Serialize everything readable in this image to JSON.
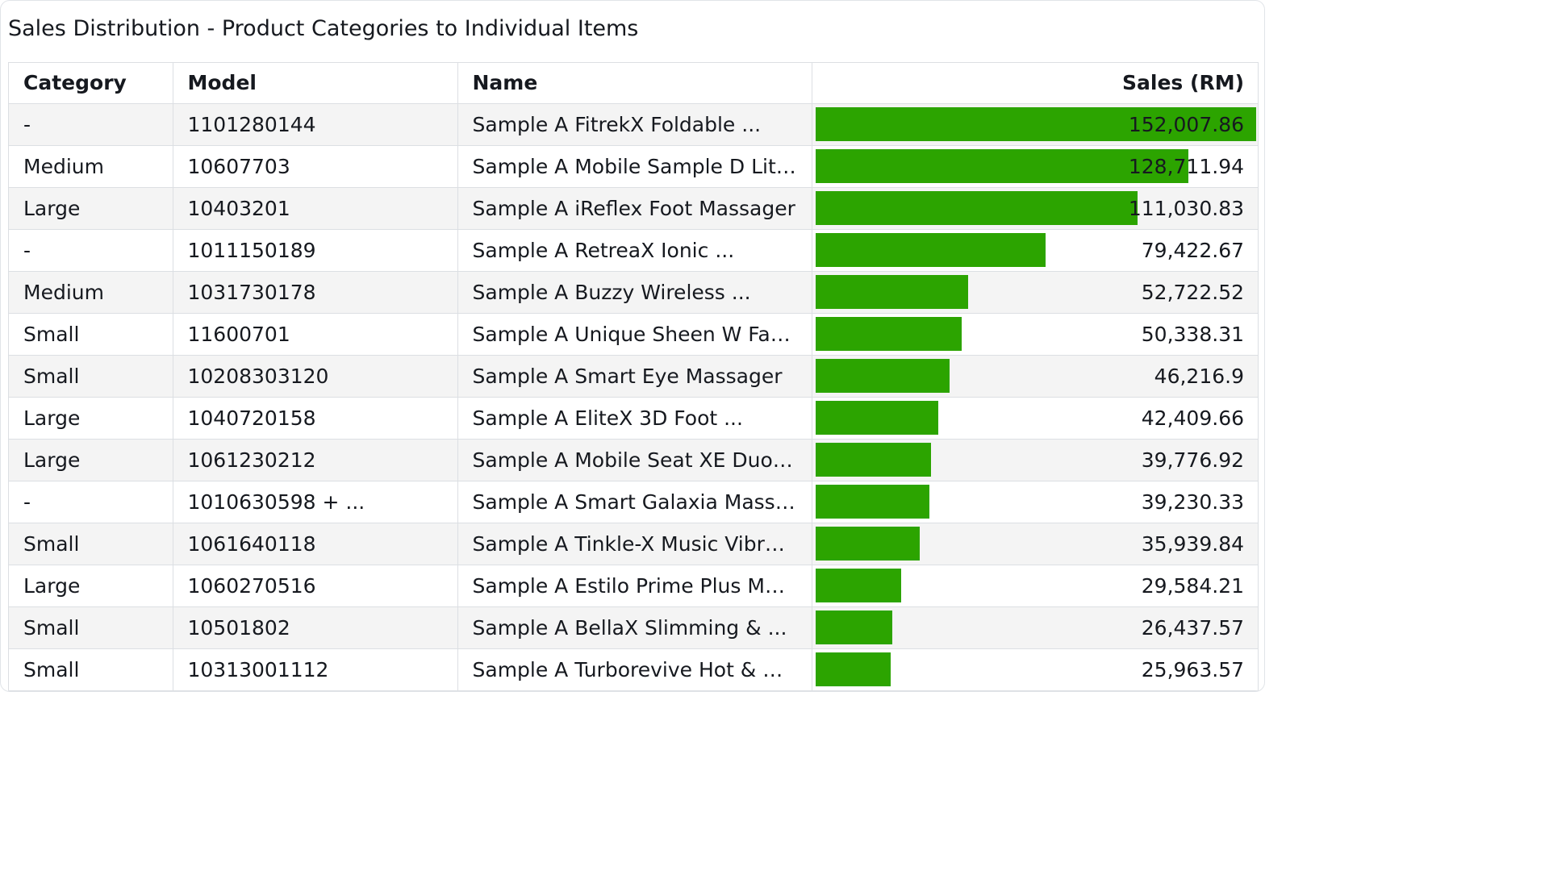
{
  "title": "Sales Distribution - Product Categories to Individual Items",
  "columns": {
    "category": "Category",
    "model": "Model",
    "name": "Name",
    "sales": "Sales (RM)"
  },
  "colors": {
    "bar": "#2ca400"
  },
  "chart_data": {
    "type": "table",
    "title": "Sales Distribution - Product Categories to Individual Items",
    "value_column": "Sales (RM)",
    "bar_max": 152007.86,
    "rows": [
      {
        "category": "-",
        "model": "1101280144",
        "name": "Sample A FitrekX Foldable ...",
        "sales": 152007.86,
        "sales_label": "152,007.86"
      },
      {
        "category": "Medium",
        "model": "10607703",
        "name": "Sample A Mobile Sample D Lite ...",
        "sales": 128711.94,
        "sales_label": "128,711.94"
      },
      {
        "category": "Large",
        "model": "10403201",
        "name": "Sample A iReflex Foot Massager",
        "sales": 111030.83,
        "sales_label": "111,030.83"
      },
      {
        "category": "-",
        "model": "1011150189",
        "name": "Sample A RetreaX Ionic ...",
        "sales": 79422.67,
        "sales_label": "79,422.67"
      },
      {
        "category": "Medium",
        "model": "1031730178",
        "name": "Sample A Buzzy Wireless ...",
        "sales": 52722.52,
        "sales_label": "52,722.52"
      },
      {
        "category": "Small",
        "model": "11600701",
        "name": "Sample A Unique Sheen W Facial...",
        "sales": 50338.31,
        "sales_label": "50,338.31"
      },
      {
        "category": "Small",
        "model": "10208303120",
        "name": "Sample A Smart Eye Massager",
        "sales": 46216.9,
        "sales_label": "46,216.9"
      },
      {
        "category": "Large",
        "model": "1040720158",
        "name": "Sample A EliteX 3D Foot ...",
        "sales": 42409.66,
        "sales_label": "42,409.66"
      },
      {
        "category": "Large",
        "model": "1061230212",
        "name": "Sample A Mobile Seat XE Duo Pr...",
        "sales": 39776.92,
        "sales_label": "39,776.92"
      },
      {
        "category": "-",
        "model": "1010630598 + ...",
        "name": "Sample A Smart Galaxia Massage...",
        "sales": 39230.33,
        "sales_label": "39,230.33"
      },
      {
        "category": "Small",
        "model": "1061640118",
        "name": "Sample A Tinkle-X Music Vibratio...",
        "sales": 35939.84,
        "sales_label": "35,939.84"
      },
      {
        "category": "Large",
        "model": "1060270516",
        "name": "Sample A Estilo Prime Plus Mobil...",
        "sales": 29584.21,
        "sales_label": "29,584.21"
      },
      {
        "category": "Small",
        "model": "10501802",
        "name": "Sample A BellaX Slimming & ...",
        "sales": 26437.57,
        "sales_label": "26,437.57"
      },
      {
        "category": "Small",
        "model": "10313001112",
        "name": "Sample A Turborevive Hot & Col...",
        "sales": 25963.57,
        "sales_label": "25,963.57"
      }
    ]
  }
}
